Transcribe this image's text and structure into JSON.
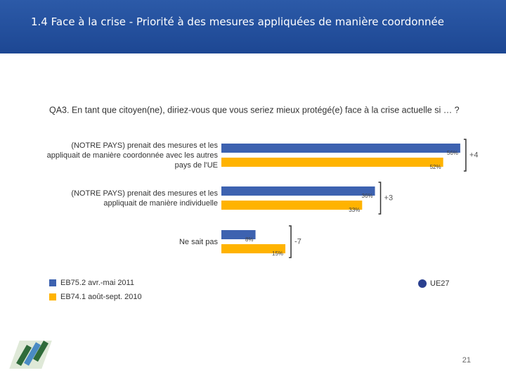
{
  "chart_data": {
    "type": "bar",
    "orientation": "horizontal",
    "header": "1.4 Face à la crise - Priorité à des mesures appliquées de manière coordonnée",
    "title": "QA3. En tant que citoyen(ne), diriez-vous que vous seriez mieux protégé(e) face à la crise actuelle si … ?",
    "categories": [
      "(NOTRE PAYS) prenait des mesures et les appliquait de manière coordonnée avec les autres pays de l'UE",
      "(NOTRE PAYS) prenait des mesures et les appliquait de manière individuelle",
      "Ne sait pas"
    ],
    "series": [
      {
        "name": "EB75.2 avr.-mai 2011",
        "color": "#3d62b0",
        "values": [
          56,
          36,
          8
        ],
        "value_labels": [
          "56%",
          "36%",
          "8%"
        ]
      },
      {
        "name": "EB74.1 août-sept. 2010",
        "color": "#ffb300",
        "values": [
          52,
          33,
          15
        ],
        "value_labels": [
          "52%",
          "33%",
          "15%"
        ]
      }
    ],
    "differences": [
      "+4",
      "+3",
      "-7"
    ],
    "region": "UE27",
    "page_number": "21"
  }
}
